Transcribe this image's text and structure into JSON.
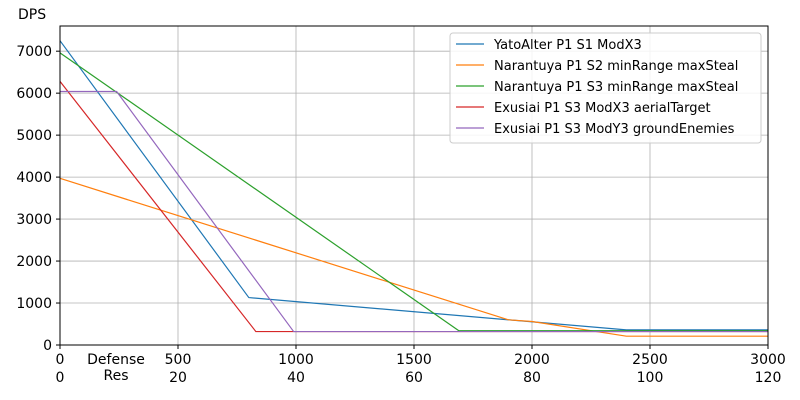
{
  "chart_data": {
    "type": "line",
    "ylabel": "DPS",
    "xlabel_lines": [
      "Defense",
      "Res"
    ],
    "xlim": [
      0,
      3000
    ],
    "ylim": [
      0,
      7600
    ],
    "grid": true,
    "legend_position": "top-right",
    "x_ticks": [
      0,
      500,
      1000,
      1500,
      2000,
      2500,
      3000
    ],
    "x_tick_labels": [
      "0",
      "500",
      "1000",
      "1500",
      "2000",
      "2500",
      "3000"
    ],
    "x_secondary_tick_labels": [
      "0",
      "20",
      "40",
      "60",
      "80",
      "100",
      "120"
    ],
    "y_ticks": [
      0,
      1000,
      2000,
      3000,
      4000,
      5000,
      6000,
      7000
    ],
    "y_tick_labels": [
      "0",
      "1000",
      "2000",
      "3000",
      "4000",
      "5000",
      "6000",
      "7000"
    ],
    "series": [
      {
        "name": "YatoAlter P1 S1 ModX3",
        "color": "#1f77b4",
        "points": [
          [
            0,
            7250
          ],
          [
            800,
            1130
          ],
          [
            2400,
            360
          ],
          [
            3000,
            360
          ]
        ]
      },
      {
        "name": "Narantuya P1 S2 minRange maxSteal",
        "color": "#ff7f0e",
        "points": [
          [
            0,
            3970
          ],
          [
            1900,
            600
          ],
          [
            2000,
            560
          ],
          [
            2400,
            210
          ],
          [
            3000,
            210
          ]
        ]
      },
      {
        "name": "Narantuya P1 S3 minRange maxSteal",
        "color": "#2ca02c",
        "points": [
          [
            0,
            6960
          ],
          [
            1690,
            340
          ],
          [
            3000,
            340
          ]
        ]
      },
      {
        "name": "Exusiai P1 S3 ModX3 aerialTarget",
        "color": "#d62728",
        "points": [
          [
            0,
            6280
          ],
          [
            830,
            320
          ],
          [
            3000,
            320
          ]
        ]
      },
      {
        "name": "Exusiai P1 S3 ModY3 groundEnemies",
        "color": "#9467bd",
        "points": [
          [
            0,
            6040
          ],
          [
            240,
            6040
          ],
          [
            990,
            320
          ],
          [
            3000,
            320
          ]
        ]
      }
    ]
  }
}
